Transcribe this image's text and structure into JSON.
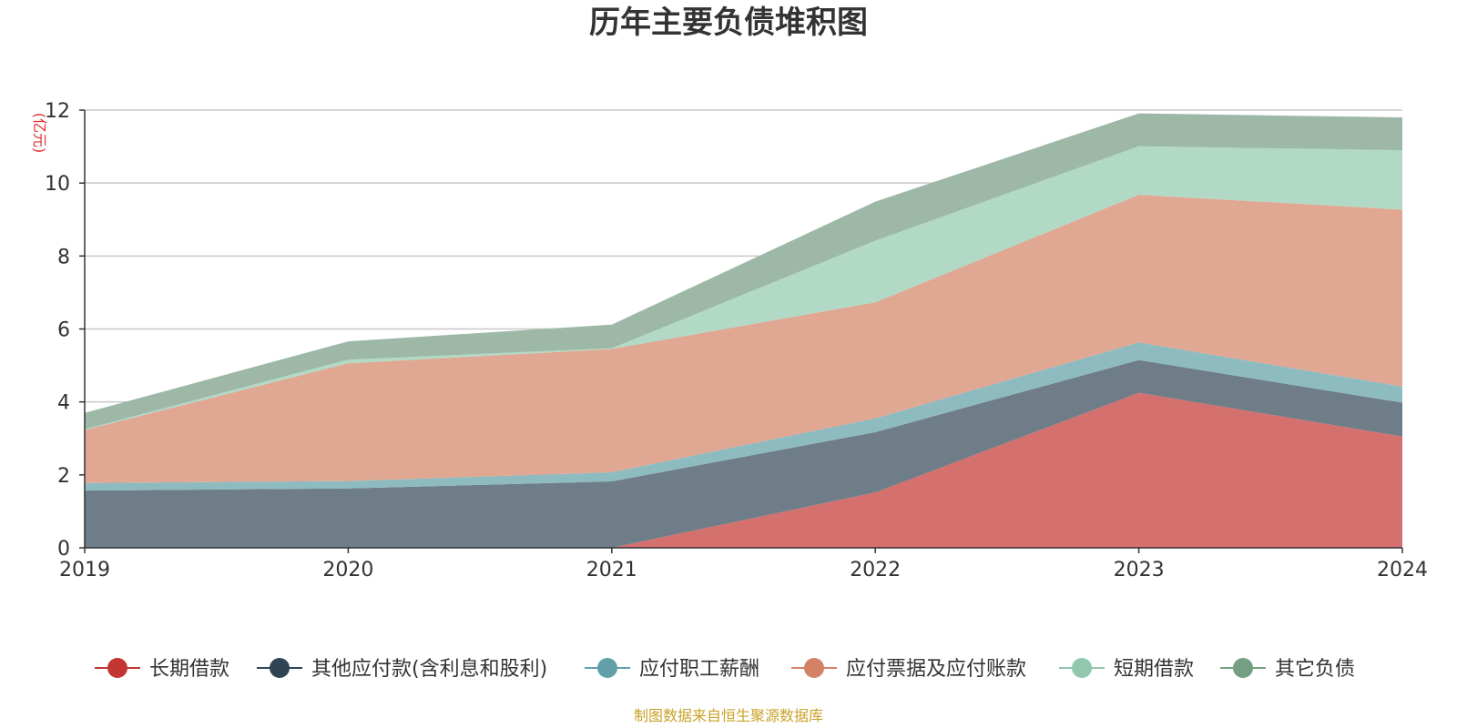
{
  "chart_data": {
    "type": "area",
    "stacked": true,
    "title": "历年主要负债堆积图",
    "unit": "(亿元)",
    "source": "制图数据来自恒生聚源数据库",
    "x": [
      "2019",
      "2020",
      "2021",
      "2022",
      "2023",
      "2024"
    ],
    "ylim": [
      0,
      12
    ],
    "yticks": [
      0,
      2,
      4,
      6,
      8,
      10,
      12
    ],
    "grid": true,
    "legend_position": "bottom",
    "series": [
      {
        "name": "长期借款",
        "color": "#c23531",
        "fill": "#d4706d",
        "values": [
          0,
          0,
          0,
          1.52,
          4.25,
          3.05
        ]
      },
      {
        "name": "其他应付款(含利息和股利)",
        "color": "#2f4554",
        "fill": "#6e7d88",
        "values": [
          1.57,
          1.63,
          1.82,
          1.65,
          0.9,
          0.93
        ]
      },
      {
        "name": "应付职工薪酬",
        "color": "#61a0a8",
        "fill": "#8ebbc0",
        "values": [
          0.21,
          0.2,
          0.25,
          0.38,
          0.48,
          0.44
        ]
      },
      {
        "name": "应付票据及应付账款",
        "color": "#d48265",
        "fill": "#e0a792",
        "values": [
          1.45,
          3.23,
          3.38,
          3.18,
          4.05,
          4.85
        ]
      },
      {
        "name": "短期借款",
        "color": "#91c7ae",
        "fill": "#b1d9c6",
        "values": [
          0.02,
          0.1,
          0.02,
          1.69,
          1.33,
          1.63
        ]
      },
      {
        "name": "其它负债",
        "color": "#749f83",
        "fill": "#9db8a6",
        "values": [
          0.45,
          0.5,
          0.65,
          1.07,
          0.9,
          0.9
        ]
      }
    ]
  }
}
